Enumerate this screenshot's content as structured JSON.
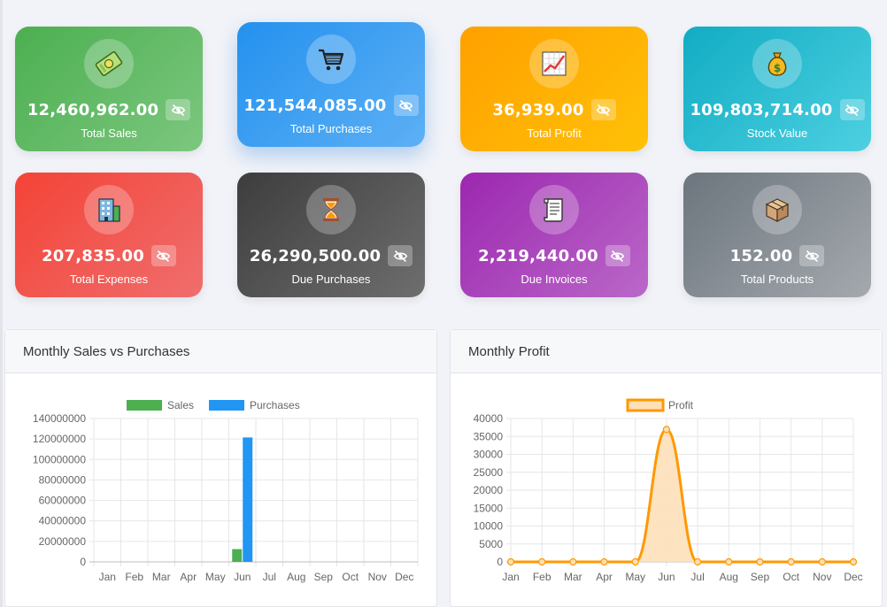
{
  "cards": [
    {
      "value": "12,460,962.00",
      "label": "Total Sales",
      "icon": "money-icon"
    },
    {
      "value": "121,544,085.00",
      "label": "Total Purchases",
      "icon": "cart-icon"
    },
    {
      "value": "36,939.00",
      "label": "Total Profit",
      "icon": "chart-up-icon"
    },
    {
      "value": "109,803,714.00",
      "label": "Stock Value",
      "icon": "money-bag-icon"
    },
    {
      "value": "207,835.00",
      "label": "Total Expenses",
      "icon": "office-icon"
    },
    {
      "value": "26,290,500.00",
      "label": "Due Purchases",
      "icon": "hourglass-icon"
    },
    {
      "value": "2,219,440.00",
      "label": "Due Invoices",
      "icon": "scroll-icon"
    },
    {
      "value": "152.00",
      "label": "Total Products",
      "icon": "package-icon"
    }
  ],
  "colors": {
    "sales": "#4caf50",
    "purchases": "#2196f3",
    "profit": "#ff9800",
    "profit_fill": "#fde0b8"
  },
  "chart_data": [
    {
      "type": "bar",
      "title": "Monthly Sales vs Purchases",
      "categories": [
        "Jan",
        "Feb",
        "Mar",
        "Apr",
        "May",
        "Jun",
        "Jul",
        "Aug",
        "Sep",
        "Oct",
        "Nov",
        "Dec"
      ],
      "series": [
        {
          "name": "Sales",
          "values": [
            0,
            0,
            0,
            0,
            0,
            12460962,
            0,
            0,
            0,
            0,
            0,
            0
          ]
        },
        {
          "name": "Purchases",
          "values": [
            0,
            0,
            0,
            0,
            0,
            121544085,
            0,
            0,
            0,
            0,
            0,
            0
          ]
        }
      ],
      "yticks": [
        "140000000",
        "120000000",
        "100000000",
        "80000000",
        "60000000",
        "40000000",
        "20000000",
        "0"
      ],
      "ylim": [
        0,
        140000000
      ],
      "legend": "top",
      "grid": true
    },
    {
      "type": "line",
      "title": "Monthly Profit",
      "categories": [
        "Jan",
        "Feb",
        "Mar",
        "Apr",
        "May",
        "Jun",
        "Jul",
        "Aug",
        "Sep",
        "Oct",
        "Nov",
        "Dec"
      ],
      "series": [
        {
          "name": "Profit",
          "values": [
            0,
            0,
            0,
            0,
            0,
            36939,
            0,
            0,
            0,
            0,
            0,
            0
          ]
        }
      ],
      "yticks": [
        "40000",
        "35000",
        "30000",
        "25000",
        "20000",
        "15000",
        "10000",
        "5000",
        "0"
      ],
      "ylim": [
        0,
        40000
      ],
      "legend": "top",
      "grid": true,
      "fill": true
    }
  ]
}
